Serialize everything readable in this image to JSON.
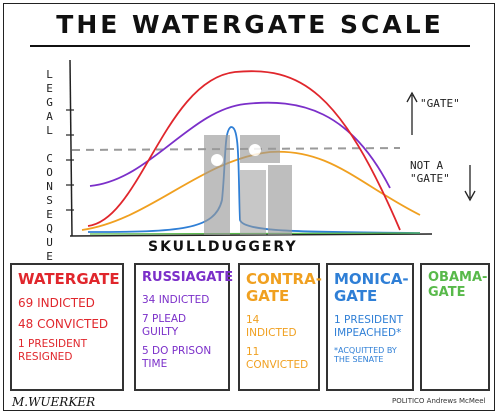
{
  "title": "THE WATERGATE SCALE",
  "y_axis_label": "LEGAL CONSEQUENCES",
  "x_axis_label": "SKULLDUGGERY",
  "gate_label": "\"GATE\"",
  "not_gate_label": "NOT A \"GATE\"",
  "colors": {
    "watergate": "#e0262c",
    "russiagate": "#7b2fc9",
    "contragate": "#f0a020",
    "monicagate": "#2f7fd6",
    "obamagate": "#58b94a",
    "threshold": "#999999"
  },
  "cards": [
    {
      "name": "WATERGATE",
      "lines": [
        "69 INDICTED",
        "48 CONVICTED",
        "1 PRESIDENT RESIGNED"
      ],
      "note": ""
    },
    {
      "name": "RUSSIAGATE",
      "lines": [
        "34 INDICTED",
        "7 PLEAD GUILTY",
        "5 DO PRISON TIME"
      ],
      "note": ""
    },
    {
      "name": "CONTRA-GATE",
      "lines": [
        "14 INDICTED",
        "11 CONVICTED"
      ],
      "note": ""
    },
    {
      "name": "MONICA-GATE",
      "lines": [
        "1 PRESIDENT IMPEACHED*"
      ],
      "note": "*ACQUITTED BY THE SENATE"
    },
    {
      "name": "OBAMA-GATE",
      "lines": [],
      "note": ""
    }
  ],
  "signature": "M.WUERKER",
  "credit": "POLITICO Andrews McMeel"
}
